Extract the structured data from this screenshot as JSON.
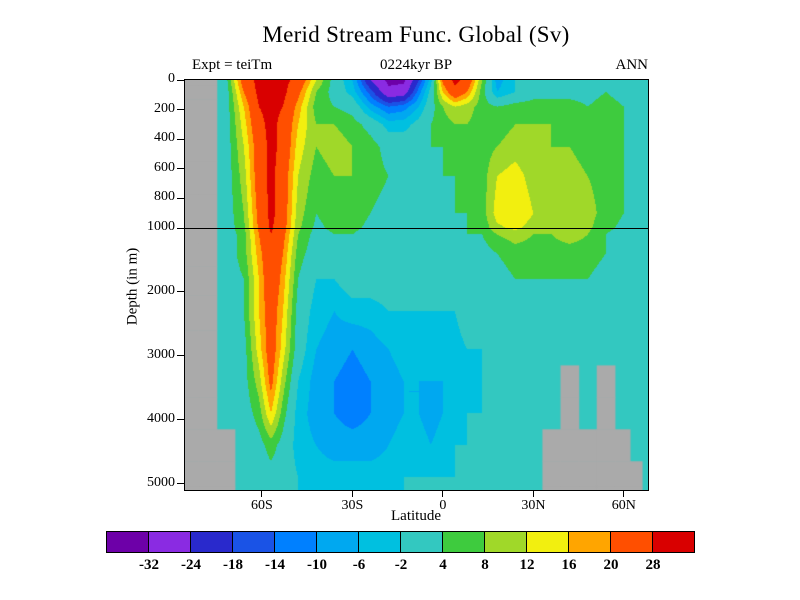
{
  "title": "Merid Stream Func. Global (Sv)",
  "header": {
    "expt": "Expt = teiTm",
    "time": "0224kyr BP",
    "season": "ANN"
  },
  "axes": {
    "y_label": "Depth (in m)",
    "x_label": "Latitude",
    "y_ticks": [
      "0",
      "200",
      "400",
      "600",
      "800",
      "1000",
      "2000",
      "3000",
      "4000",
      "5000"
    ],
    "y_tick_depths": [
      0,
      200,
      400,
      600,
      800,
      1000,
      2000,
      3000,
      4000,
      5000
    ],
    "x_ticks": [
      "60S",
      "30S",
      "0",
      "30N",
      "60N"
    ],
    "x_tick_lats": [
      -60,
      -30,
      0,
      30,
      60
    ],
    "reference_line_depth_m": 1000
  },
  "colorbar": {
    "labels": [
      "-32",
      "-24",
      "-18",
      "-14",
      "-10",
      "-6",
      "-2",
      "4",
      "8",
      "12",
      "16",
      "20",
      "28"
    ],
    "levels": [
      -32,
      -24,
      -18,
      -14,
      -10,
      -6,
      -2,
      4,
      8,
      12,
      16,
      20,
      28
    ],
    "colors": [
      "#6d00a8",
      "#8a2be2",
      "#2929cc",
      "#1a53e6",
      "#0080ff",
      "#00a8f0",
      "#00c0e0",
      "#33c8c0",
      "#3ecb3e",
      "#a0d829",
      "#f2ef0f",
      "#ffa500",
      "#ff4f00",
      "#d90000"
    ]
  },
  "chart_data": {
    "type": "heatmap",
    "title": "Merid Stream Func. Global (Sv)",
    "units": "Sv",
    "xlabel": "Latitude",
    "ylabel": "Depth (in m)",
    "lat_range": [
      -85.5,
      68
    ],
    "depth_range_m": [
      0,
      5100
    ],
    "land_color": "#aaaaaa",
    "background_color": "#ffffff",
    "x_latitudes": [
      -84,
      -78,
      -72,
      -66,
      -61,
      -57,
      -53,
      -48,
      -42,
      -36,
      -30,
      -24,
      -18,
      -13,
      -8,
      -4,
      0,
      4,
      8,
      13,
      18,
      24,
      30,
      36,
      42,
      48,
      54,
      60,
      64,
      68
    ],
    "y_depths_m": [
      0,
      80,
      180,
      300,
      450,
      650,
      900,
      1100,
      1400,
      1800,
      2300,
      2900,
      3400,
      3900,
      4400,
      4900,
      5200
    ],
    "values": [
      [
        null,
        null,
        2,
        24,
        30,
        30,
        30,
        26,
        12,
        2,
        -6,
        -24,
        -34,
        -34,
        -18,
        -4,
        22,
        30,
        26,
        8,
        -8,
        -2,
        2,
        2,
        1,
        2,
        4,
        2,
        1,
        1
      ],
      [
        null,
        null,
        1,
        20,
        30,
        30,
        30,
        22,
        8,
        2,
        -4,
        -16,
        -30,
        -28,
        -12,
        0,
        16,
        26,
        20,
        6,
        -6,
        -2,
        2,
        2,
        2,
        2,
        4,
        2,
        1,
        1
      ],
      [
        null,
        null,
        1,
        16,
        28,
        30,
        28,
        18,
        6,
        4,
        2,
        -8,
        -14,
        -12,
        -6,
        2,
        8,
        12,
        10,
        6,
        4,
        6,
        6,
        6,
        6,
        4,
        6,
        4,
        2,
        1
      ],
      [
        null,
        null,
        1,
        14,
        26,
        30,
        26,
        16,
        8,
        8,
        6,
        2,
        -4,
        -4,
        0,
        4,
        6,
        8,
        8,
        6,
        6,
        8,
        8,
        8,
        6,
        6,
        6,
        4,
        2,
        1
      ],
      [
        null,
        null,
        1,
        12,
        24,
        30,
        26,
        14,
        8,
        10,
        8,
        6,
        2,
        2,
        2,
        4,
        4,
        6,
        6,
        6,
        8,
        10,
        8,
        8,
        8,
        6,
        6,
        4,
        2,
        1
      ],
      [
        null,
        null,
        1,
        10,
        24,
        30,
        24,
        12,
        6,
        8,
        8,
        6,
        4,
        2,
        2,
        2,
        4,
        4,
        6,
        6,
        12,
        14,
        10,
        10,
        10,
        8,
        6,
        4,
        2,
        1
      ],
      [
        null,
        null,
        1,
        8,
        22,
        30,
        24,
        10,
        4,
        6,
        6,
        4,
        2,
        2,
        2,
        2,
        2,
        4,
        4,
        6,
        14,
        16,
        12,
        10,
        12,
        10,
        6,
        4,
        2,
        1
      ],
      [
        null,
        null,
        1,
        6,
        20,
        28,
        22,
        8,
        2,
        4,
        4,
        2,
        1,
        1,
        1,
        1,
        2,
        2,
        4,
        4,
        8,
        10,
        8,
        8,
        10,
        8,
        4,
        2,
        1,
        1
      ],
      [
        null,
        null,
        1,
        6,
        18,
        26,
        20,
        6,
        1,
        2,
        2,
        1,
        1,
        1,
        1,
        1,
        1,
        2,
        2,
        2,
        4,
        6,
        6,
        6,
        6,
        6,
        4,
        2,
        1,
        1
      ],
      [
        null,
        null,
        1,
        4,
        16,
        26,
        18,
        4,
        -2,
        -2,
        1,
        1,
        1,
        1,
        1,
        1,
        1,
        1,
        1,
        2,
        2,
        4,
        4,
        4,
        4,
        4,
        2,
        1,
        1,
        1
      ],
      [
        null,
        null,
        1,
        4,
        16,
        24,
        16,
        2,
        -4,
        -6,
        -4,
        -4,
        -2,
        -2,
        -2,
        -2,
        -2,
        -2,
        1,
        1,
        1,
        2,
        2,
        2,
        2,
        2,
        1,
        1,
        1,
        1
      ],
      [
        null,
        null,
        1,
        2,
        14,
        24,
        14,
        1,
        -6,
        -8,
        -10,
        -8,
        -6,
        -4,
        -4,
        -4,
        -4,
        -4,
        -2,
        -2,
        1,
        1,
        1,
        1,
        1,
        1,
        1,
        1,
        1,
        1
      ],
      [
        null,
        null,
        1,
        2,
        10,
        22,
        10,
        -2,
        -8,
        -10,
        -12,
        -10,
        -8,
        -6,
        -6,
        -6,
        -6,
        -6,
        -4,
        -2,
        1,
        1,
        1,
        1,
        null,
        1,
        null,
        1,
        1,
        1
      ],
      [
        null,
        null,
        1,
        1,
        6,
        16,
        6,
        -4,
        -8,
        -10,
        -12,
        -10,
        -8,
        -6,
        -6,
        -8,
        -6,
        -4,
        -2,
        -2,
        1,
        1,
        1,
        1,
        null,
        1,
        null,
        1,
        1,
        1
      ],
      [
        null,
        null,
        null,
        1,
        2,
        6,
        2,
        -4,
        -6,
        -8,
        -8,
        -8,
        -6,
        -4,
        -4,
        -6,
        -4,
        -2,
        -2,
        1,
        1,
        1,
        1,
        null,
        null,
        null,
        null,
        null,
        1,
        1
      ],
      [
        null,
        null,
        null,
        1,
        1,
        2,
        1,
        -2,
        -4,
        -4,
        -4,
        -4,
        -4,
        -2,
        -2,
        -2,
        -2,
        -2,
        1,
        1,
        1,
        1,
        1,
        null,
        null,
        null,
        null,
        null,
        null,
        1
      ],
      [
        null,
        null,
        null,
        1,
        1,
        1,
        1,
        -2,
        -2,
        -2,
        -2,
        -2,
        -2,
        -2,
        -2,
        -2,
        -2,
        -2,
        1,
        1,
        1,
        1,
        1,
        null,
        null,
        null,
        null,
        null,
        null,
        1
      ]
    ]
  }
}
